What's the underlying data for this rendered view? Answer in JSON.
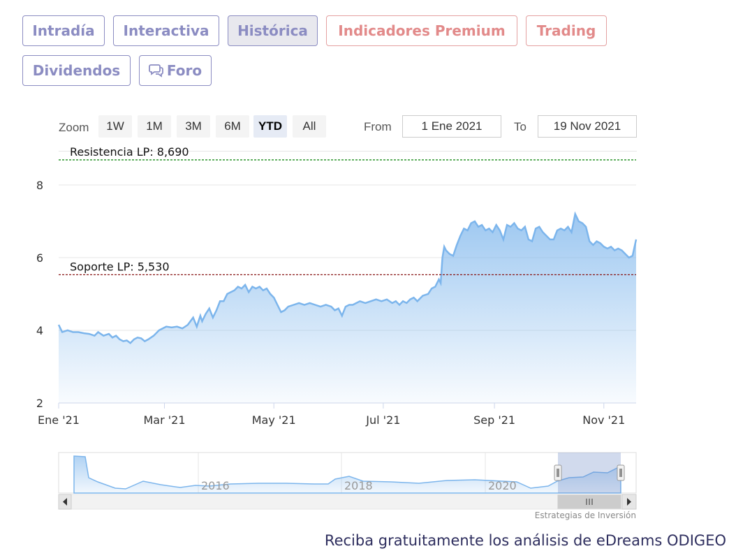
{
  "tabs": [
    {
      "label": "Intradía",
      "style": "normal"
    },
    {
      "label": "Interactiva",
      "style": "normal"
    },
    {
      "label": "Histórica",
      "style": "active"
    },
    {
      "label": "Indicadores Premium",
      "style": "premium"
    },
    {
      "label": "Trading",
      "style": "premium"
    },
    {
      "label": "Dividendos",
      "style": "normal"
    },
    {
      "label": "Foro",
      "style": "normal",
      "icon": "chat-bubbles-icon"
    }
  ],
  "toolbar": {
    "zoom_label": "Zoom",
    "zoom_buttons": [
      "1W",
      "1M",
      "3M",
      "6M",
      "YTD",
      "All"
    ],
    "zoom_selected": "YTD",
    "from_label": "From",
    "from_value": "1 Ene 2021",
    "to_label": "To",
    "to_value": "19 Nov 2021"
  },
  "colors": {
    "tab_text": "#8b8cc2",
    "tab_premium": "#e28a8a",
    "series_line": "#7cb5ec",
    "resistance_line": "#1a8c1a",
    "support_line": "#8b1a1a",
    "cta_text": "#2e2e5e"
  },
  "chart_data": {
    "type": "area",
    "title": "",
    "xlabel": "",
    "ylabel": "",
    "x_ticks": [
      "Ene '21",
      "Mar '21",
      "May '21",
      "Jul '21",
      "Sep '21",
      "Nov '21"
    ],
    "x_tick_days": [
      0,
      59,
      120,
      181,
      243,
      304
    ],
    "y_ticks": [
      2,
      4,
      6,
      8
    ],
    "ylim": [
      2.0,
      8.9
    ],
    "xlim_days": [
      0,
      322
    ],
    "grid": true,
    "series": [
      {
        "points": [
          [
            0,
            4.15
          ],
          [
            2,
            3.95
          ],
          [
            5,
            4.0
          ],
          [
            8,
            3.95
          ],
          [
            11,
            3.95
          ],
          [
            14,
            3.92
          ],
          [
            17,
            3.9
          ],
          [
            20,
            3.85
          ],
          [
            22,
            3.95
          ],
          [
            25,
            3.85
          ],
          [
            28,
            3.9
          ],
          [
            30,
            3.8
          ],
          [
            32,
            3.85
          ],
          [
            34,
            3.75
          ],
          [
            36,
            3.7
          ],
          [
            38,
            3.72
          ],
          [
            40,
            3.65
          ],
          [
            42,
            3.75
          ],
          [
            44,
            3.8
          ],
          [
            46,
            3.78
          ],
          [
            48,
            3.7
          ],
          [
            50,
            3.75
          ],
          [
            53,
            3.85
          ],
          [
            56,
            4.0
          ],
          [
            60,
            4.1
          ],
          [
            63,
            4.08
          ],
          [
            66,
            4.1
          ],
          [
            69,
            4.05
          ],
          [
            72,
            4.15
          ],
          [
            75,
            4.35
          ],
          [
            77,
            4.1
          ],
          [
            79,
            4.4
          ],
          [
            80,
            4.25
          ],
          [
            82,
            4.45
          ],
          [
            84,
            4.6
          ],
          [
            86,
            4.35
          ],
          [
            88,
            4.55
          ],
          [
            90,
            4.8
          ],
          [
            92,
            4.8
          ],
          [
            94,
            5.0
          ],
          [
            96,
            5.05
          ],
          [
            98,
            5.1
          ],
          [
            100,
            5.2
          ],
          [
            102,
            5.15
          ],
          [
            104,
            5.25
          ],
          [
            106,
            5.05
          ],
          [
            108,
            5.2
          ],
          [
            110,
            5.15
          ],
          [
            112,
            5.2
          ],
          [
            114,
            5.1
          ],
          [
            116,
            5.15
          ],
          [
            118,
            5.0
          ],
          [
            120,
            4.9
          ],
          [
            122,
            4.7
          ],
          [
            124,
            4.5
          ],
          [
            126,
            4.55
          ],
          [
            128,
            4.65
          ],
          [
            131,
            4.7
          ],
          [
            134,
            4.75
          ],
          [
            137,
            4.7
          ],
          [
            140,
            4.75
          ],
          [
            143,
            4.7
          ],
          [
            146,
            4.65
          ],
          [
            149,
            4.7
          ],
          [
            152,
            4.65
          ],
          [
            154,
            4.55
          ],
          [
            156,
            4.6
          ],
          [
            158,
            4.4
          ],
          [
            160,
            4.65
          ],
          [
            162,
            4.7
          ],
          [
            164,
            4.7
          ],
          [
            166,
            4.75
          ],
          [
            168,
            4.8
          ],
          [
            171,
            4.75
          ],
          [
            174,
            4.8
          ],
          [
            177,
            4.85
          ],
          [
            180,
            4.8
          ],
          [
            183,
            4.85
          ],
          [
            186,
            4.75
          ],
          [
            188,
            4.8
          ],
          [
            190,
            4.7
          ],
          [
            192,
            4.8
          ],
          [
            194,
            4.75
          ],
          [
            196,
            4.85
          ],
          [
            198,
            4.9
          ],
          [
            200,
            4.8
          ],
          [
            203,
            4.95
          ],
          [
            206,
            5.0
          ],
          [
            208,
            5.15
          ],
          [
            210,
            5.2
          ],
          [
            212,
            5.4
          ],
          [
            213,
            5.3
          ],
          [
            214,
            6.0
          ],
          [
            215,
            6.3
          ],
          [
            216,
            6.2
          ],
          [
            218,
            6.1
          ],
          [
            220,
            6.05
          ],
          [
            222,
            6.35
          ],
          [
            224,
            6.6
          ],
          [
            226,
            6.8
          ],
          [
            228,
            6.75
          ],
          [
            230,
            6.95
          ],
          [
            232,
            7.0
          ],
          [
            234,
            6.85
          ],
          [
            236,
            6.9
          ],
          [
            238,
            6.75
          ],
          [
            240,
            6.8
          ],
          [
            242,
            6.7
          ],
          [
            244,
            6.9
          ],
          [
            246,
            6.75
          ],
          [
            248,
            6.5
          ],
          [
            250,
            6.9
          ],
          [
            252,
            6.85
          ],
          [
            254,
            6.95
          ],
          [
            256,
            6.8
          ],
          [
            258,
            6.75
          ],
          [
            260,
            6.85
          ],
          [
            262,
            6.5
          ],
          [
            264,
            6.45
          ],
          [
            266,
            6.8
          ],
          [
            268,
            6.85
          ],
          [
            270,
            6.7
          ],
          [
            272,
            6.6
          ],
          [
            274,
            6.5
          ],
          [
            276,
            6.5
          ],
          [
            278,
            6.75
          ],
          [
            280,
            6.8
          ],
          [
            282,
            6.75
          ],
          [
            284,
            6.85
          ],
          [
            286,
            6.7
          ],
          [
            288,
            7.2
          ],
          [
            290,
            7.0
          ],
          [
            292,
            6.95
          ],
          [
            294,
            6.85
          ],
          [
            296,
            6.45
          ],
          [
            298,
            6.35
          ],
          [
            300,
            6.45
          ],
          [
            302,
            6.4
          ],
          [
            304,
            6.3
          ],
          [
            306,
            6.25
          ],
          [
            308,
            6.3
          ],
          [
            310,
            6.2
          ],
          [
            312,
            6.25
          ],
          [
            314,
            6.2
          ],
          [
            316,
            6.1
          ],
          [
            318,
            6.0
          ],
          [
            320,
            6.05
          ],
          [
            322,
            6.5
          ]
        ]
      }
    ],
    "annotations": [
      {
        "label": "Resistencia LP: 8,690",
        "value": 8.69
      },
      {
        "label": "Soporte LP: 5,530",
        "value": 5.53
      }
    ],
    "navigator": {
      "x_labels": [
        "2016",
        "2018",
        "2020"
      ]
    }
  },
  "credits": "Estrategias de Inversión",
  "cta": "Reciba gratuitamente los análisis de eDreams ODIGEO"
}
